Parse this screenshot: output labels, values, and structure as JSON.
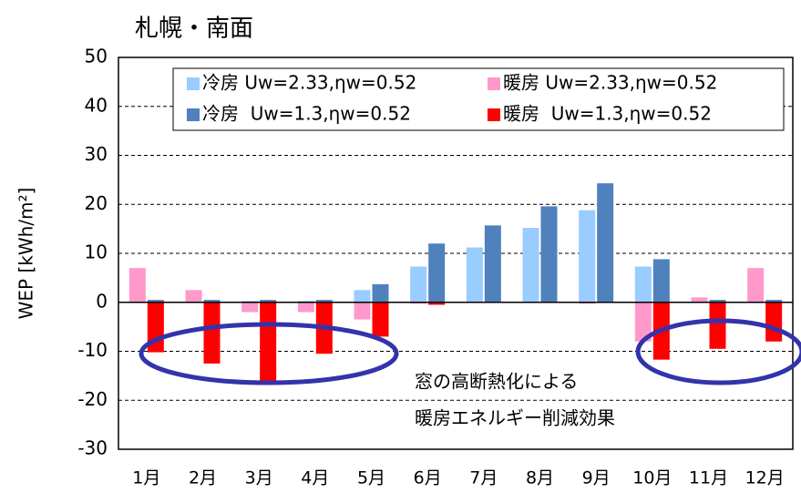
{
  "chart_data": {
    "type": "bar",
    "title": "札幌・南面",
    "ylabel": "WEP [kWh/m²]",
    "categories": [
      "1月",
      "2月",
      "3月",
      "4月",
      "5月",
      "6月",
      "7月",
      "8月",
      "9月",
      "10月",
      "11月",
      "12月"
    ],
    "series": [
      {
        "name": "冷房 Uw=2.33,ηw=0.52",
        "color": "#99ccff",
        "values": [
          0.3,
          0.3,
          0.3,
          0.3,
          2.5,
          7.3,
          11.2,
          15.2,
          18.8,
          7.3,
          0.3,
          0.3
        ]
      },
      {
        "name": "冷房  Uw=1.3,ηw=0.52",
        "color": "#4f81bd",
        "values": [
          0.5,
          0.5,
          0.5,
          0.5,
          3.7,
          12,
          15.7,
          19.6,
          24.3,
          8.8,
          0.5,
          0.5
        ]
      },
      {
        "name": "暖房 Uw=2.33,ηw=0.52",
        "color": "#ff99cc",
        "values": [
          7,
          2.5,
          -2,
          -2,
          -3.5,
          -0.3,
          0,
          0,
          -0.3,
          -8,
          1,
          7
        ]
      },
      {
        "name": "暖房  Uw=1.3,ηw=0.52",
        "color": "#ff0000",
        "values": [
          -10.2,
          -12.5,
          -16.2,
          -10.5,
          -7,
          -0.5,
          0,
          0,
          0,
          -11.7,
          -9.5,
          -8
        ]
      }
    ],
    "ylim": [
      -30,
      50
    ],
    "yticks": [
      -30,
      -20,
      -10,
      0,
      10,
      20,
      30,
      40,
      50
    ],
    "grid": true,
    "annotations": [
      "窓の高断熱化による",
      "暖房エネルギー削減効果"
    ]
  }
}
